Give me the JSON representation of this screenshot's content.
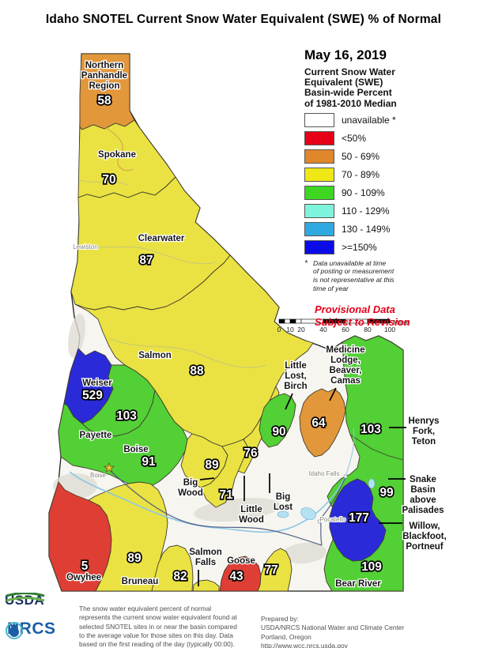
{
  "title": "Idaho SNOTEL Current Snow Water Equivalent (SWE) % of Normal",
  "legend": {
    "date": "May 16, 2019",
    "subtitle_lines": [
      "Current Snow Water",
      "Equivalent (SWE)",
      "Basin-wide Percent",
      "of 1981-2010 Median"
    ],
    "entries": [
      {
        "label": "unavailable *",
        "color": "#ffffff"
      },
      {
        "label": "<50%",
        "color": "#e60017"
      },
      {
        "label": "50 - 69%",
        "color": "#e0862b"
      },
      {
        "label": "70 - 89%",
        "color": "#f0e816"
      },
      {
        "label": "90 - 109%",
        "color": "#3fd622"
      },
      {
        "label": "110 - 129%",
        "color": "#7ff4dc"
      },
      {
        "label": "130 - 149%",
        "color": "#2fa9e0"
      },
      {
        "label": ">=150%",
        "color": "#0b0be8"
      }
    ],
    "footnote_star": "*",
    "footnote_lines": [
      "Data unavailable at time",
      "of posting or measurement",
      "is not representative at this",
      "time of year"
    ],
    "provisional_lines": [
      "Provisional Data",
      "Subject to Revision"
    ]
  },
  "scalebar": {
    "ticks": [
      "0",
      "10",
      "20",
      "40",
      "60",
      "80",
      "100"
    ],
    "unit": "Miles"
  },
  "colors": {
    "base": "#f6f5f0",
    "gray": "#dfddd4",
    "red": "#df3e35",
    "orange": "#e2973b",
    "yellow": "#eae242",
    "green": "#52d036",
    "cyan": "#b5e2f2",
    "blue": "#2a2ad9"
  },
  "map": {
    "basins": [
      {
        "id": "northern-panhandle",
        "lines": [
          "Northern",
          "Panhandle",
          "Region"
        ],
        "value": "58"
      },
      {
        "id": "spokane",
        "lines": [
          "Spokane"
        ],
        "value": "70"
      },
      {
        "id": "clearwater",
        "lines": [
          "Clearwater"
        ],
        "value": "87"
      },
      {
        "id": "salmon",
        "lines": [
          "Salmon"
        ],
        "value": "88"
      },
      {
        "id": "weiser",
        "lines": [
          "Weiser"
        ],
        "value": "529"
      },
      {
        "id": "payette",
        "lines": [
          "Payette"
        ],
        "value": "103"
      },
      {
        "id": "boise",
        "lines": [
          "Boise"
        ],
        "value": "91"
      },
      {
        "id": "big-wood",
        "lines": [
          "Big",
          "Wood"
        ],
        "value": "89"
      },
      {
        "id": "little-wood",
        "lines": [
          "Little",
          "Wood"
        ],
        "value": "71"
      },
      {
        "id": "big-lost",
        "lines": [
          "Big",
          "Lost"
        ],
        "value": "76"
      },
      {
        "id": "little-lost-birch",
        "lines": [
          "Little",
          "Lost,",
          "Birch"
        ],
        "value": "90"
      },
      {
        "id": "medicine-lodge-beaver-camas",
        "lines": [
          "Medicine",
          "Lodge,",
          "Beaver,",
          "Camas"
        ],
        "value": "64"
      },
      {
        "id": "henrys-fork-teton",
        "lines": [
          "Henrys",
          "Fork,",
          "Teton"
        ],
        "value": "103"
      },
      {
        "id": "snake-basin-above-palisades",
        "lines": [
          "Snake",
          "Basin",
          "above",
          "Palisades"
        ],
        "value": "99"
      },
      {
        "id": "willow-blackfoot-portneuf",
        "lines": [
          "Willow,",
          "Blackfoot,",
          "Portneuf"
        ],
        "value": "177"
      },
      {
        "id": "bear-river",
        "lines": [
          "Bear River"
        ],
        "value": "109"
      },
      {
        "id": "owyhee",
        "lines": [
          "Owyhee"
        ],
        "value": "5"
      },
      {
        "id": "bruneau",
        "lines": [
          "Bruneau"
        ],
        "value": "89"
      },
      {
        "id": "salmon-falls",
        "lines": [
          "Salmon",
          "Falls"
        ],
        "value": "82"
      },
      {
        "id": "goose",
        "lines": [
          "Goose"
        ],
        "value": "43"
      },
      {
        "id": "raft",
        "lines": [],
        "value": "77"
      }
    ],
    "cities": [
      {
        "id": "lewiston",
        "name": "Lewiston"
      },
      {
        "id": "boise-city",
        "name": "Boise"
      },
      {
        "id": "idaho-falls",
        "name": "Idaho Falls"
      },
      {
        "id": "pocatello",
        "name": "Pocatello"
      }
    ]
  },
  "footer": {
    "usda_label": "USDA",
    "nrcs_label": "NRCS",
    "description_lines": [
      "The snow water equivalent percent of normal",
      "represents the current snow water equivalent found at",
      "selected SNOTEL sites in or near the basin compared",
      "to the average value for those sites on this day. Data",
      "based on the first reading of the day (typically 00:00)."
    ],
    "prepared_lines": [
      "Prepared by:",
      "USDA/NRCS National Water and Climate Center",
      "Portland, Oregon",
      "http://www.wcc.nrcs.usda.gov"
    ]
  }
}
